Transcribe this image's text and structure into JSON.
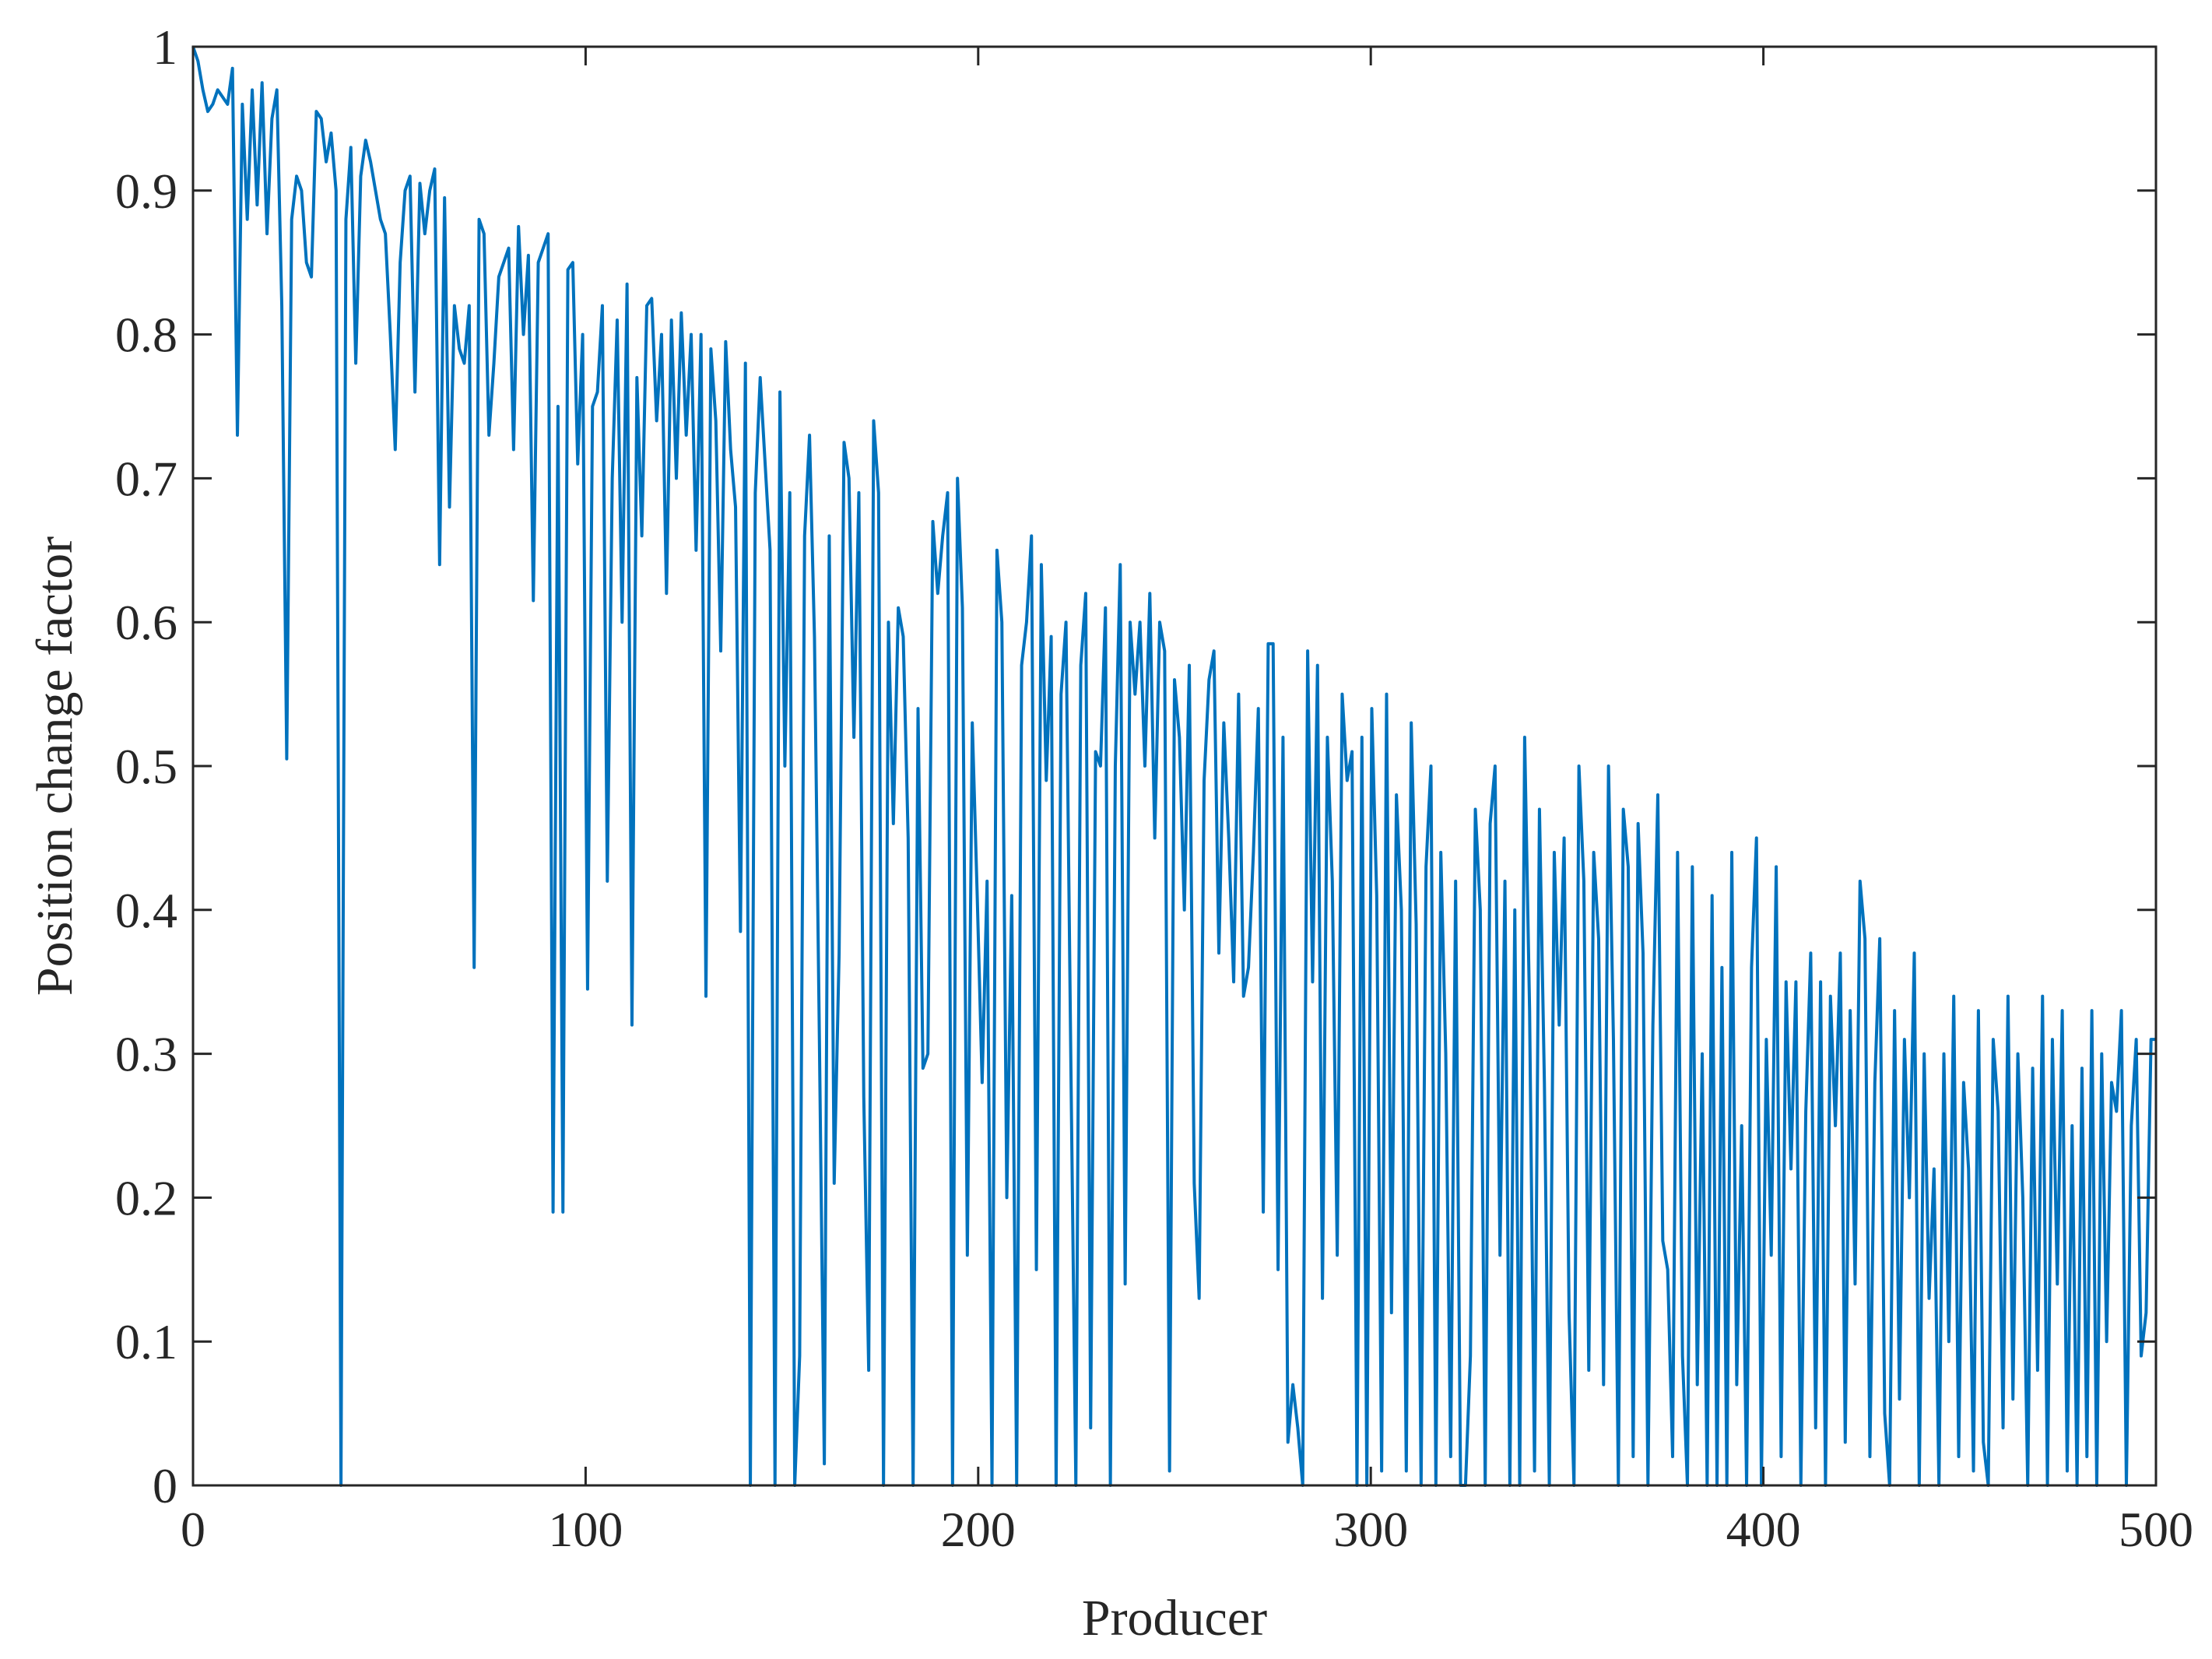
{
  "chart_data": {
    "type": "line",
    "xlabel": "Producer",
    "ylabel": "Position change factor",
    "xlim": [
      0,
      500
    ],
    "ylim": [
      0,
      1
    ],
    "xticks": [
      0,
      100,
      200,
      300,
      400,
      500
    ],
    "xtick_labels": [
      "0",
      "100",
      "200",
      "300",
      "400",
      "500"
    ],
    "yticks": [
      0,
      0.1,
      0.2,
      0.3,
      0.4,
      0.5,
      0.6,
      0.7,
      0.8,
      0.9,
      1
    ],
    "ytick_labels": [
      "0",
      "0.1",
      "0.2",
      "0.3",
      "0.4",
      "0.5",
      "0.6",
      "0.7",
      "0.8",
      "0.9",
      "1"
    ],
    "grid": false,
    "box": true,
    "series_color": "#0072BD",
    "trend": {
      "description": "upper envelope decays from about 1.0 at x=0 to about 0.33 at x=500; values oscillate strongly down to 0",
      "anchor_points": [
        [
          0,
          1.0
        ],
        [
          50,
          0.88
        ],
        [
          100,
          0.8
        ],
        [
          150,
          0.7
        ],
        [
          200,
          0.62
        ],
        [
          250,
          0.57
        ],
        [
          300,
          0.5
        ],
        [
          350,
          0.45
        ],
        [
          400,
          0.4
        ],
        [
          450,
          0.36
        ],
        [
          500,
          0.31
        ]
      ]
    },
    "series": [
      {
        "values": [
          1.0,
          0.99,
          0.97,
          0.955,
          0.96,
          0.97,
          0.965,
          0.96,
          0.985,
          0.73,
          0.96,
          0.88,
          0.97,
          0.89,
          0.975,
          0.87,
          0.95,
          0.97,
          0.82,
          0.505,
          0.88,
          0.91,
          0.9,
          0.85,
          0.84,
          0.955,
          0.95,
          0.92,
          0.94,
          0.9,
          0.0,
          0.88,
          0.93,
          0.78,
          0.91,
          0.935,
          0.92,
          0.9,
          0.88,
          0.87,
          0.8,
          0.72,
          0.85,
          0.9,
          0.91,
          0.76,
          0.905,
          0.87,
          0.9,
          0.915,
          0.64,
          0.895,
          0.68,
          0.82,
          0.79,
          0.78,
          0.82,
          0.36,
          0.88,
          0.87,
          0.73,
          0.78,
          0.84,
          0.85,
          0.86,
          0.72,
          0.875,
          0.8,
          0.855,
          0.615,
          0.85,
          0.86,
          0.87,
          0.19,
          0.75,
          0.19,
          0.845,
          0.85,
          0.71,
          0.8,
          0.345,
          0.75,
          0.76,
          0.82,
          0.42,
          0.7,
          0.81,
          0.6,
          0.835,
          0.32,
          0.77,
          0.66,
          0.82,
          0.825,
          0.74,
          0.8,
          0.62,
          0.81,
          0.7,
          0.815,
          0.73,
          0.8,
          0.65,
          0.8,
          0.34,
          0.79,
          0.74,
          0.58,
          0.795,
          0.72,
          0.68,
          0.385,
          0.78,
          0.0,
          0.69,
          0.77,
          0.71,
          0.65,
          0.0,
          0.76,
          0.5,
          0.69,
          0.0,
          0.09,
          0.66,
          0.73,
          0.59,
          0.31,
          0.015,
          0.66,
          0.21,
          0.37,
          0.725,
          0.7,
          0.52,
          0.69,
          0.27,
          0.08,
          0.74,
          0.69,
          0.0,
          0.6,
          0.46,
          0.61,
          0.59,
          0.45,
          0.0,
          0.54,
          0.29,
          0.3,
          0.67,
          0.62,
          0.66,
          0.69,
          0.0,
          0.7,
          0.61,
          0.16,
          0.53,
          0.41,
          0.28,
          0.42,
          0.0,
          0.65,
          0.6,
          0.2,
          0.41,
          0.0,
          0.57,
          0.6,
          0.66,
          0.15,
          0.64,
          0.49,
          0.59,
          0.0,
          0.55,
          0.6,
          0.29,
          0.0,
          0.57,
          0.62,
          0.04,
          0.51,
          0.5,
          0.61,
          0.0,
          0.5,
          0.64,
          0.14,
          0.6,
          0.55,
          0.6,
          0.5,
          0.62,
          0.45,
          0.6,
          0.58,
          0.01,
          0.56,
          0.52,
          0.4,
          0.57,
          0.21,
          0.13,
          0.49,
          0.56,
          0.58,
          0.37,
          0.53,
          0.45,
          0.35,
          0.55,
          0.34,
          0.36,
          0.44,
          0.54,
          0.19,
          0.585,
          0.585,
          0.15,
          0.52,
          0.03,
          0.07,
          0.04,
          0.0,
          0.58,
          0.35,
          0.57,
          0.13,
          0.52,
          0.42,
          0.16,
          0.55,
          0.49,
          0.51,
          0.0,
          0.52,
          0.0,
          0.54,
          0.41,
          0.01,
          0.55,
          0.12,
          0.48,
          0.4,
          0.01,
          0.53,
          0.39,
          0.0,
          0.43,
          0.5,
          0.0,
          0.44,
          0.3,
          0.02,
          0.42,
          0.0,
          0.0,
          0.09,
          0.47,
          0.4,
          0.0,
          0.46,
          0.5,
          0.16,
          0.42,
          0.0,
          0.4,
          0.0,
          0.52,
          0.33,
          0.01,
          0.47,
          0.28,
          0.0,
          0.44,
          0.32,
          0.45,
          0.12,
          0.0,
          0.5,
          0.42,
          0.08,
          0.44,
          0.38,
          0.07,
          0.5,
          0.31,
          0.0,
          0.47,
          0.43,
          0.02,
          0.46,
          0.37,
          0.0,
          0.32,
          0.48,
          0.17,
          0.15,
          0.02,
          0.44,
          0.09,
          0.0,
          0.43,
          0.07,
          0.3,
          0.0,
          0.41,
          0.0,
          0.36,
          0.0,
          0.44,
          0.07,
          0.25,
          0.0,
          0.36,
          0.45,
          0.0,
          0.31,
          0.16,
          0.43,
          0.02,
          0.35,
          0.22,
          0.35,
          0.0,
          0.26,
          0.37,
          0.04,
          0.35,
          0.0,
          0.34,
          0.25,
          0.37,
          0.03,
          0.33,
          0.14,
          0.42,
          0.38,
          0.02,
          0.28,
          0.38,
          0.05,
          0.0,
          0.33,
          0.06,
          0.31,
          0.2,
          0.37,
          0.0,
          0.3,
          0.13,
          0.22,
          0.0,
          0.3,
          0.1,
          0.34,
          0.02,
          0.28,
          0.22,
          0.01,
          0.33,
          0.03,
          0.0,
          0.31,
          0.26,
          0.04,
          0.34,
          0.06,
          0.3,
          0.2,
          0.0,
          0.29,
          0.08,
          0.34,
          0.0,
          0.31,
          0.14,
          0.33,
          0.01,
          0.25,
          0.0,
          0.29,
          0.02,
          0.33,
          0.0,
          0.3,
          0.1,
          0.28,
          0.26,
          0.33,
          0.0,
          0.25,
          0.31,
          0.09,
          0.12,
          0.31,
          0.31
        ],
        "approximate": true
      }
    ]
  }
}
